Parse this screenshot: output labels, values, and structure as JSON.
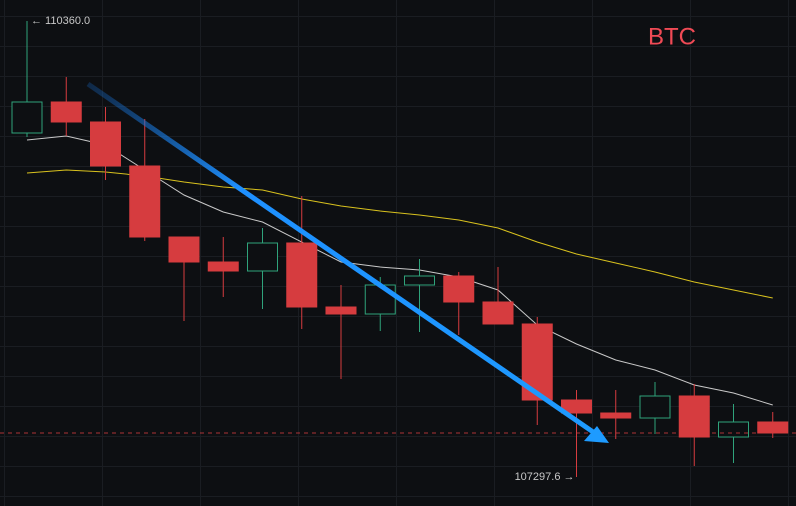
{
  "chart_data": {
    "type": "candlestick",
    "title": "BTC",
    "ylim": [
      107196.8,
      110501.0
    ],
    "up_color": "#2fa37b",
    "down_color": "#d63c3f",
    "candles": [
      {
        "open": 109607.8,
        "high": 110360.0,
        "low": 109580.9,
        "close": 109816.0
      },
      {
        "open": 109816.0,
        "high": 109983.9,
        "low": 109587.7,
        "close": 109681.7
      },
      {
        "open": 109681.7,
        "high": 109782.4,
        "low": 109292.2,
        "close": 109386.2
      },
      {
        "open": 109386.2,
        "high": 109701.8,
        "low": 108882.5,
        "close": 108909.3
      },
      {
        "open": 108909.3,
        "high": 108909.3,
        "low": 108345.2,
        "close": 108741.4
      },
      {
        "open": 108741.4,
        "high": 108909.3,
        "low": 108506.4,
        "close": 108681.0
      },
      {
        "open": 108681.0,
        "high": 108969.8,
        "low": 108425.8,
        "close": 108869.0
      },
      {
        "open": 108869.0,
        "high": 109184.7,
        "low": 108291.5,
        "close": 108439.2
      },
      {
        "open": 108439.2,
        "high": 108587.0,
        "low": 107955.7,
        "close": 108392.2
      },
      {
        "open": 108392.2,
        "high": 108640.7,
        "low": 108278.0,
        "close": 108587.0
      },
      {
        "open": 108587.0,
        "high": 108761.6,
        "low": 108271.3,
        "close": 108647.4
      },
      {
        "open": 108647.4,
        "high": 108674.3,
        "low": 108251.2,
        "close": 108472.8
      },
      {
        "open": 108472.8,
        "high": 108707.9,
        "low": 108325.1,
        "close": 108325.1
      },
      {
        "open": 108325.1,
        "high": 108372.1,
        "low": 107646.7,
        "close": 107814.6
      },
      {
        "open": 107814.6,
        "high": 107881.8,
        "low": 107297.6,
        "close": 107727.3
      },
      {
        "open": 107727.3,
        "high": 107881.8,
        "low": 107552.7,
        "close": 107693.7
      },
      {
        "open": 107693.7,
        "high": 107935.5,
        "low": 107586.3,
        "close": 107841.5
      },
      {
        "open": 107841.5,
        "high": 107922.1,
        "low": 107371.4,
        "close": 107566.1
      },
      {
        "open": 107566.1,
        "high": 107787.8,
        "low": 107391.5,
        "close": 107666.9
      },
      {
        "open": 107666.9,
        "high": 107734.0,
        "low": 107559.4,
        "close": 107593.0
      }
    ],
    "moving_averages": [
      {
        "color": "#c9c9c9",
        "values": [
          109560.8,
          109587.6,
          109527.2,
          109359.3,
          109191.4,
          109077.2,
          109010.0,
          108875.7,
          108741.4,
          108707.8,
          108687.7,
          108640.7,
          108553.4,
          108318.3,
          108190.7,
          108083.2,
          108016.1,
          107915.3,
          107861.6,
          107781.0
        ]
      },
      {
        "color": "#d9c21e",
        "values": [
          109339.1,
          109359.3,
          109345.8,
          109319.0,
          109278.7,
          109245.1,
          109225.0,
          109164.5,
          109117.5,
          109083.9,
          109057.1,
          109023.5,
          108969.8,
          108875.7,
          108795.1,
          108734.7,
          108674.2,
          108607.1,
          108553.4,
          108499.6
        ]
      }
    ],
    "annotations": [
      {
        "value": 110360.0,
        "label": "← 110360.0"
      },
      {
        "value": 107297.6,
        "label": "107297.6 →"
      }
    ]
  }
}
